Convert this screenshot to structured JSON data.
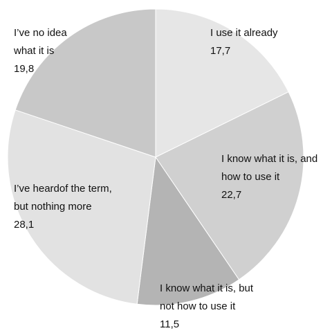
{
  "chart_data": {
    "type": "pie",
    "slices": [
      {
        "label_lines": [
          "I use it already"
        ],
        "value": 17.7,
        "value_text": "17,7",
        "color": "#e6e6e6"
      },
      {
        "label_lines": [
          "I know what it is, and",
          "how to use it"
        ],
        "value": 22.7,
        "value_text": "22,7",
        "color": "#d0d0d0"
      },
      {
        "label_lines": [
          "I know what it is, but",
          "not how to use it"
        ],
        "value": 11.5,
        "value_text": "11,5",
        "color": "#b4b4b4"
      },
      {
        "label_lines": [
          "I’ve heardof the term,",
          "but nothing more"
        ],
        "value": 28.1,
        "value_text": "28,1",
        "color": "#e2e2e2"
      },
      {
        "label_lines": [
          "I’ve no idea",
          "what it is"
        ],
        "value": 19.8,
        "value_text": "19,8",
        "color": "#c8c8c8"
      }
    ],
    "start": "12 o'clock",
    "direction": "clockwise",
    "legend": "none"
  }
}
